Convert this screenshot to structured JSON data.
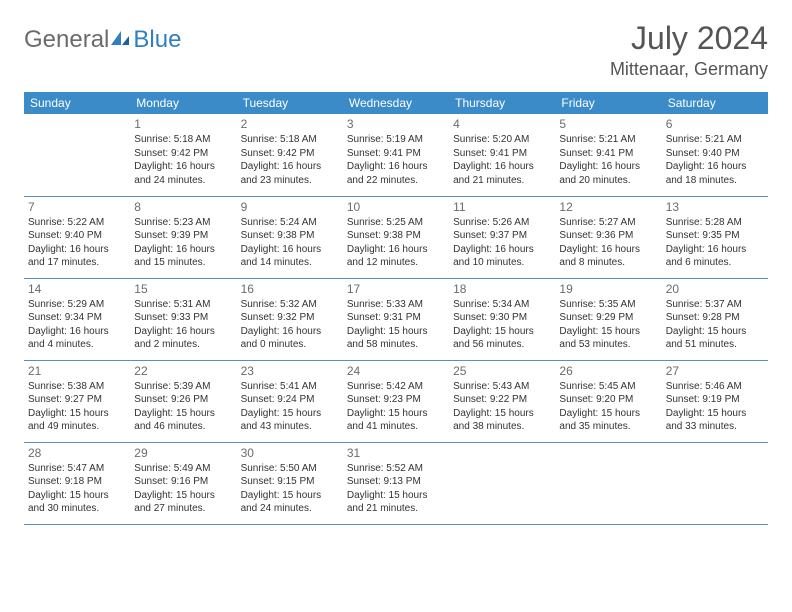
{
  "logo": {
    "part1": "General",
    "part2": "Blue"
  },
  "title": {
    "month": "July 2024",
    "location": "Mittenaar, Germany"
  },
  "colors": {
    "header_bg": "#3b8bc9",
    "header_text": "#ffffff",
    "border": "#5a8fbd",
    "daynum": "#6b6b6b",
    "body_text": "#333333",
    "logo_gray": "#6b6b6b",
    "logo_blue": "#2f7fc2"
  },
  "weekdays": [
    "Sunday",
    "Monday",
    "Tuesday",
    "Wednesday",
    "Thursday",
    "Friday",
    "Saturday"
  ],
  "weeks": [
    [
      {
        "n": "",
        "sr": "",
        "ss": "",
        "d1": "",
        "d2": ""
      },
      {
        "n": "1",
        "sr": "Sunrise: 5:18 AM",
        "ss": "Sunset: 9:42 PM",
        "d1": "Daylight: 16 hours",
        "d2": "and 24 minutes."
      },
      {
        "n": "2",
        "sr": "Sunrise: 5:18 AM",
        "ss": "Sunset: 9:42 PM",
        "d1": "Daylight: 16 hours",
        "d2": "and 23 minutes."
      },
      {
        "n": "3",
        "sr": "Sunrise: 5:19 AM",
        "ss": "Sunset: 9:41 PM",
        "d1": "Daylight: 16 hours",
        "d2": "and 22 minutes."
      },
      {
        "n": "4",
        "sr": "Sunrise: 5:20 AM",
        "ss": "Sunset: 9:41 PM",
        "d1": "Daylight: 16 hours",
        "d2": "and 21 minutes."
      },
      {
        "n": "5",
        "sr": "Sunrise: 5:21 AM",
        "ss": "Sunset: 9:41 PM",
        "d1": "Daylight: 16 hours",
        "d2": "and 20 minutes."
      },
      {
        "n": "6",
        "sr": "Sunrise: 5:21 AM",
        "ss": "Sunset: 9:40 PM",
        "d1": "Daylight: 16 hours",
        "d2": "and 18 minutes."
      }
    ],
    [
      {
        "n": "7",
        "sr": "Sunrise: 5:22 AM",
        "ss": "Sunset: 9:40 PM",
        "d1": "Daylight: 16 hours",
        "d2": "and 17 minutes."
      },
      {
        "n": "8",
        "sr": "Sunrise: 5:23 AM",
        "ss": "Sunset: 9:39 PM",
        "d1": "Daylight: 16 hours",
        "d2": "and 15 minutes."
      },
      {
        "n": "9",
        "sr": "Sunrise: 5:24 AM",
        "ss": "Sunset: 9:38 PM",
        "d1": "Daylight: 16 hours",
        "d2": "and 14 minutes."
      },
      {
        "n": "10",
        "sr": "Sunrise: 5:25 AM",
        "ss": "Sunset: 9:38 PM",
        "d1": "Daylight: 16 hours",
        "d2": "and 12 minutes."
      },
      {
        "n": "11",
        "sr": "Sunrise: 5:26 AM",
        "ss": "Sunset: 9:37 PM",
        "d1": "Daylight: 16 hours",
        "d2": "and 10 minutes."
      },
      {
        "n": "12",
        "sr": "Sunrise: 5:27 AM",
        "ss": "Sunset: 9:36 PM",
        "d1": "Daylight: 16 hours",
        "d2": "and 8 minutes."
      },
      {
        "n": "13",
        "sr": "Sunrise: 5:28 AM",
        "ss": "Sunset: 9:35 PM",
        "d1": "Daylight: 16 hours",
        "d2": "and 6 minutes."
      }
    ],
    [
      {
        "n": "14",
        "sr": "Sunrise: 5:29 AM",
        "ss": "Sunset: 9:34 PM",
        "d1": "Daylight: 16 hours",
        "d2": "and 4 minutes."
      },
      {
        "n": "15",
        "sr": "Sunrise: 5:31 AM",
        "ss": "Sunset: 9:33 PM",
        "d1": "Daylight: 16 hours",
        "d2": "and 2 minutes."
      },
      {
        "n": "16",
        "sr": "Sunrise: 5:32 AM",
        "ss": "Sunset: 9:32 PM",
        "d1": "Daylight: 16 hours",
        "d2": "and 0 minutes."
      },
      {
        "n": "17",
        "sr": "Sunrise: 5:33 AM",
        "ss": "Sunset: 9:31 PM",
        "d1": "Daylight: 15 hours",
        "d2": "and 58 minutes."
      },
      {
        "n": "18",
        "sr": "Sunrise: 5:34 AM",
        "ss": "Sunset: 9:30 PM",
        "d1": "Daylight: 15 hours",
        "d2": "and 56 minutes."
      },
      {
        "n": "19",
        "sr": "Sunrise: 5:35 AM",
        "ss": "Sunset: 9:29 PM",
        "d1": "Daylight: 15 hours",
        "d2": "and 53 minutes."
      },
      {
        "n": "20",
        "sr": "Sunrise: 5:37 AM",
        "ss": "Sunset: 9:28 PM",
        "d1": "Daylight: 15 hours",
        "d2": "and 51 minutes."
      }
    ],
    [
      {
        "n": "21",
        "sr": "Sunrise: 5:38 AM",
        "ss": "Sunset: 9:27 PM",
        "d1": "Daylight: 15 hours",
        "d2": "and 49 minutes."
      },
      {
        "n": "22",
        "sr": "Sunrise: 5:39 AM",
        "ss": "Sunset: 9:26 PM",
        "d1": "Daylight: 15 hours",
        "d2": "and 46 minutes."
      },
      {
        "n": "23",
        "sr": "Sunrise: 5:41 AM",
        "ss": "Sunset: 9:24 PM",
        "d1": "Daylight: 15 hours",
        "d2": "and 43 minutes."
      },
      {
        "n": "24",
        "sr": "Sunrise: 5:42 AM",
        "ss": "Sunset: 9:23 PM",
        "d1": "Daylight: 15 hours",
        "d2": "and 41 minutes."
      },
      {
        "n": "25",
        "sr": "Sunrise: 5:43 AM",
        "ss": "Sunset: 9:22 PM",
        "d1": "Daylight: 15 hours",
        "d2": "and 38 minutes."
      },
      {
        "n": "26",
        "sr": "Sunrise: 5:45 AM",
        "ss": "Sunset: 9:20 PM",
        "d1": "Daylight: 15 hours",
        "d2": "and 35 minutes."
      },
      {
        "n": "27",
        "sr": "Sunrise: 5:46 AM",
        "ss": "Sunset: 9:19 PM",
        "d1": "Daylight: 15 hours",
        "d2": "and 33 minutes."
      }
    ],
    [
      {
        "n": "28",
        "sr": "Sunrise: 5:47 AM",
        "ss": "Sunset: 9:18 PM",
        "d1": "Daylight: 15 hours",
        "d2": "and 30 minutes."
      },
      {
        "n": "29",
        "sr": "Sunrise: 5:49 AM",
        "ss": "Sunset: 9:16 PM",
        "d1": "Daylight: 15 hours",
        "d2": "and 27 minutes."
      },
      {
        "n": "30",
        "sr": "Sunrise: 5:50 AM",
        "ss": "Sunset: 9:15 PM",
        "d1": "Daylight: 15 hours",
        "d2": "and 24 minutes."
      },
      {
        "n": "31",
        "sr": "Sunrise: 5:52 AM",
        "ss": "Sunset: 9:13 PM",
        "d1": "Daylight: 15 hours",
        "d2": "and 21 minutes."
      },
      {
        "n": "",
        "sr": "",
        "ss": "",
        "d1": "",
        "d2": ""
      },
      {
        "n": "",
        "sr": "",
        "ss": "",
        "d1": "",
        "d2": ""
      },
      {
        "n": "",
        "sr": "",
        "ss": "",
        "d1": "",
        "d2": ""
      }
    ]
  ]
}
